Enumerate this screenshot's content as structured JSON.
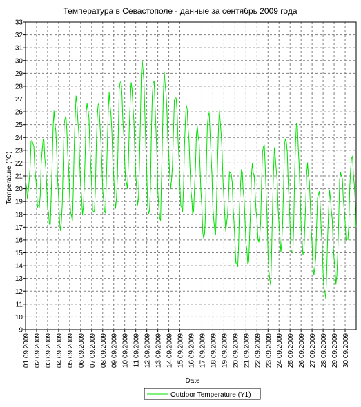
{
  "chart_data": {
    "type": "line",
    "title": "Температура в Севастополе - данные за сентябрь 2009 года",
    "xlabel": "Date",
    "ylabel": "Temperature (°C)",
    "ylim": [
      9,
      33
    ],
    "yticks": [
      9,
      10,
      11,
      12,
      13,
      14,
      15,
      16,
      17,
      18,
      19,
      20,
      21,
      22,
      23,
      24,
      25,
      26,
      27,
      28,
      29,
      30,
      31,
      32,
      33
    ],
    "x_start_date": "2009-09-01",
    "x_end_date": "2009-10-01",
    "grid": true,
    "legend_position": "bottom-center",
    "categories": [
      "01.09.2009",
      "02.09.2009",
      "03.09.2009",
      "04.09.2009",
      "05.09.2009",
      "06.09.2009",
      "07.09.2009",
      "08.09.2009",
      "09.09.2009",
      "10.09.2009",
      "11.09.2009",
      "12.09.2009",
      "13.09.2009",
      "14.09.2009",
      "15.09.2009",
      "16.09.2009",
      "17.09.2009",
      "18.09.2009",
      "19.09.2009",
      "20.09.2009",
      "21.09.2009",
      "22.09.2009",
      "23.09.2009",
      "24.09.2009",
      "25.09.2009",
      "26.09.2009",
      "27.09.2009",
      "28.09.2009",
      "29.09.2009",
      "30.09.2009"
    ],
    "series": [
      {
        "name": "Outdoor Temperature (Y1)",
        "color": "#00e000",
        "daily_min": [
          19.5,
          18.4,
          17.2,
          16.8,
          17.5,
          18.2,
          17.9,
          18.1,
          18.6,
          20.0,
          18.9,
          17.8,
          17.5,
          20.2,
          18.1,
          18.1,
          16.0,
          16.5,
          16.9,
          13.8,
          14.2,
          15.8,
          12.5,
          15.3,
          14.7,
          14.9,
          13.3,
          11.5,
          12.8,
          15.8
        ],
        "daily_max": [
          23.9,
          23.8,
          25.8,
          25.8,
          27.0,
          26.7,
          26.7,
          27.2,
          28.6,
          28.1,
          30.0,
          28.5,
          28.8,
          27.4,
          26.4,
          24.8,
          26.0,
          25.8,
          21.5,
          21.4,
          21.8,
          23.6,
          22.9,
          24.1,
          25.1,
          21.8,
          19.9,
          19.6,
          21.4,
          22.5
        ]
      }
    ]
  }
}
